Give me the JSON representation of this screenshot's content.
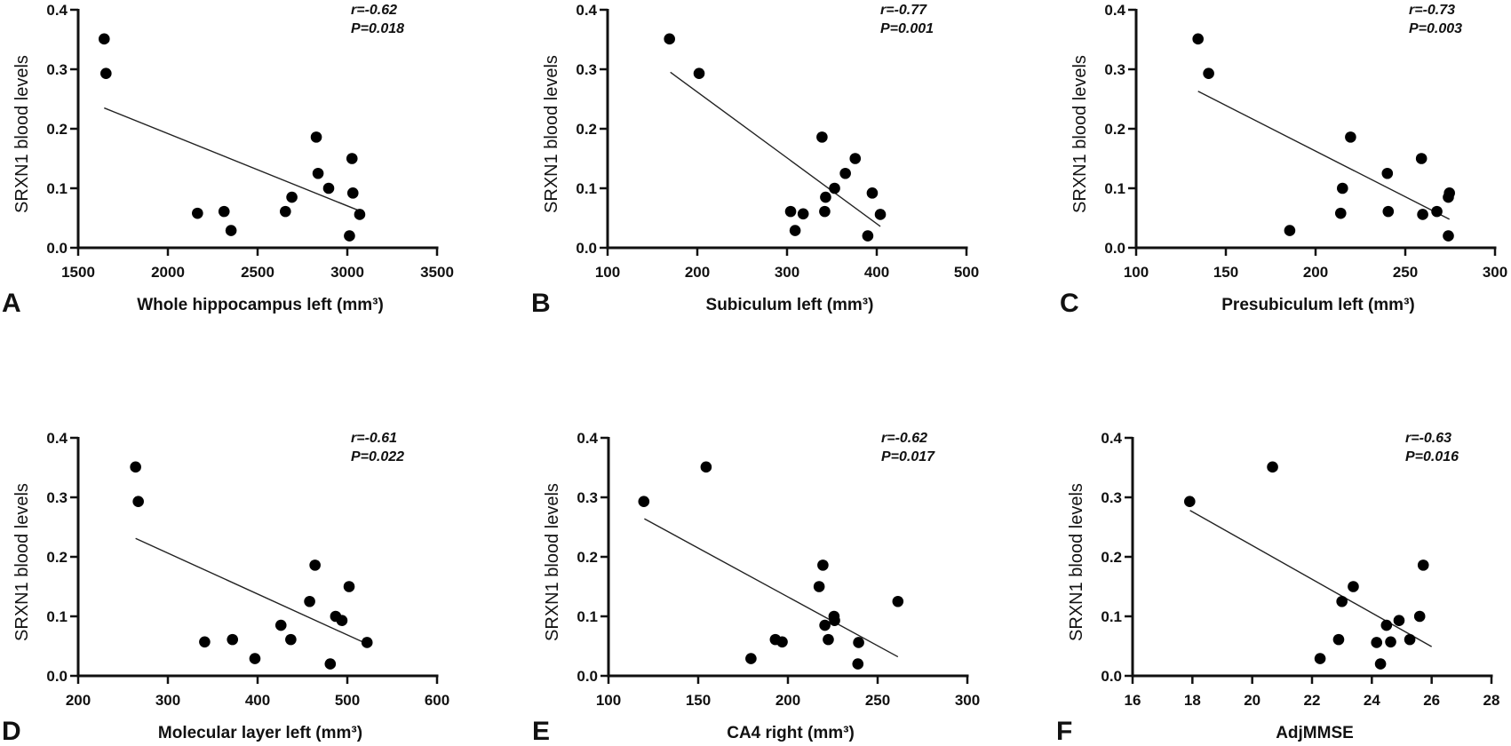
{
  "chart_data": [
    {
      "type": "scatter",
      "panel": "A",
      "xlabel": "Whole hippocampus left (mm³)",
      "ylabel": "SRXN1 blood levels",
      "xlim": [
        1500,
        3500
      ],
      "xticks": [
        1500,
        2000,
        2500,
        3000,
        3500
      ],
      "ylim": [
        0,
        0.4
      ],
      "yticks": [
        "0.0",
        "0.1",
        "0.2",
        "0.3",
        "0.4"
      ],
      "stats": {
        "r": "r=-0.62",
        "p": "P=0.018"
      },
      "points": [
        [
          1645,
          0.351
        ],
        [
          1655,
          0.293
        ],
        [
          2827,
          0.186
        ],
        [
          3026,
          0.15
        ],
        [
          2837,
          0.125
        ],
        [
          2896,
          0.1
        ],
        [
          3031,
          0.092
        ],
        [
          2691,
          0.085
        ],
        [
          2313,
          0.061
        ],
        [
          2655,
          0.061
        ],
        [
          2165,
          0.058
        ],
        [
          3069,
          0.056
        ],
        [
          2352,
          0.029
        ],
        [
          3012,
          0.02
        ]
      ],
      "fit": [
        [
          1645,
          0.235
        ],
        [
          3069,
          0.062
        ]
      ]
    },
    {
      "type": "scatter",
      "panel": "B",
      "xlabel": "Subiculum left (mm³)",
      "ylabel": "SRXN1 blood levels",
      "xlim": [
        100,
        500
      ],
      "xticks": [
        100,
        200,
        300,
        400,
        500
      ],
      "ylim": [
        0,
        0.4
      ],
      "yticks": [
        "0.0",
        "0.1",
        "0.2",
        "0.3",
        "0.4"
      ],
      "stats": {
        "r": "r=-0.77",
        "p": "P=0.001"
      },
      "points": [
        [
          169,
          0.351
        ],
        [
          202,
          0.293
        ],
        [
          339,
          0.186
        ],
        [
          376,
          0.15
        ],
        [
          365,
          0.125
        ],
        [
          353,
          0.1
        ],
        [
          395,
          0.092
        ],
        [
          343,
          0.085
        ],
        [
          304,
          0.061
        ],
        [
          342,
          0.061
        ],
        [
          318,
          0.057
        ],
        [
          404,
          0.056
        ],
        [
          309,
          0.029
        ],
        [
          390,
          0.02
        ]
      ],
      "fit": [
        [
          170,
          0.295
        ],
        [
          404,
          0.036
        ]
      ]
    },
    {
      "type": "scatter",
      "panel": "C",
      "xlabel": "Presubiculum left (mm³)",
      "ylabel": "SRXN1 blood levels",
      "xlim": [
        100,
        300
      ],
      "xticks": [
        100,
        150,
        200,
        250,
        300
      ],
      "ylim": [
        0,
        0.4
      ],
      "yticks": [
        "0.0",
        "0.1",
        "0.2",
        "0.3",
        "0.4"
      ],
      "stats": {
        "r": "r=-0.73",
        "p": "P=0.003"
      },
      "points": [
        [
          134.5,
          0.351
        ],
        [
          140.4,
          0.293
        ],
        [
          219.5,
          0.186
        ],
        [
          259,
          0.15
        ],
        [
          240,
          0.125
        ],
        [
          215,
          0.1
        ],
        [
          274.6,
          0.092
        ],
        [
          274,
          0.085
        ],
        [
          240.5,
          0.061
        ],
        [
          267.6,
          0.061
        ],
        [
          214,
          0.058
        ],
        [
          259.7,
          0.056
        ],
        [
          185.6,
          0.029
        ],
        [
          274,
          0.02
        ]
      ],
      "fit": [
        [
          134.5,
          0.263
        ],
        [
          274.6,
          0.048
        ]
      ]
    },
    {
      "type": "scatter",
      "panel": "D",
      "xlabel": "Molecular layer left (mm³)",
      "ylabel": "SRXN1 blood levels",
      "xlim": [
        200,
        600
      ],
      "xticks": [
        200,
        300,
        400,
        500,
        600
      ],
      "ylim": [
        0,
        0.4
      ],
      "yticks": [
        "0.0",
        "0.1",
        "0.2",
        "0.3",
        "0.4"
      ],
      "stats": {
        "r": "r=-0.61",
        "p": "P=0.022"
      },
      "points": [
        [
          264,
          0.351
        ],
        [
          267,
          0.293
        ],
        [
          464,
          0.186
        ],
        [
          502,
          0.15
        ],
        [
          458,
          0.125
        ],
        [
          487,
          0.1
        ],
        [
          494,
          0.093
        ],
        [
          426,
          0.085
        ],
        [
          372,
          0.061
        ],
        [
          437,
          0.061
        ],
        [
          341,
          0.057
        ],
        [
          522,
          0.056
        ],
        [
          397,
          0.029
        ],
        [
          481,
          0.02
        ]
      ],
      "fit": [
        [
          264,
          0.231
        ],
        [
          520,
          0.055
        ]
      ]
    },
    {
      "type": "scatter",
      "panel": "E",
      "xlabel": "CA4 right (mm³)",
      "ylabel": "SRXN1 blood levels",
      "xlim": [
        100,
        300
      ],
      "xticks": [
        100,
        150,
        200,
        250,
        300
      ],
      "ylim": [
        0,
        0.4
      ],
      "yticks": [
        "0.0",
        "0.1",
        "0.2",
        "0.3",
        "0.4"
      ],
      "stats": {
        "r": "r=-0.62",
        "p": "P=0.017"
      },
      "points": [
        [
          154.4,
          0.351
        ],
        [
          119.7,
          0.293
        ],
        [
          219.5,
          0.186
        ],
        [
          217.4,
          0.15
        ],
        [
          261.3,
          0.125
        ],
        [
          225.7,
          0.1
        ],
        [
          226,
          0.093
        ],
        [
          220.6,
          0.085
        ],
        [
          193,
          0.061
        ],
        [
          222.5,
          0.061
        ],
        [
          196.8,
          0.057
        ],
        [
          239.4,
          0.056
        ],
        [
          179.4,
          0.029
        ],
        [
          239,
          0.02
        ]
      ],
      "fit": [
        [
          120,
          0.264
        ],
        [
          261.3,
          0.032
        ]
      ]
    },
    {
      "type": "scatter",
      "panel": "F",
      "xlabel": "AdjMMSE",
      "ylabel": "SRXN1 blood levels",
      "xlim": [
        16,
        28
      ],
      "xticks": [
        16,
        18,
        20,
        22,
        24,
        26,
        28
      ],
      "ylim": [
        0,
        0.4
      ],
      "yticks": [
        "0.0",
        "0.1",
        "0.2",
        "0.3",
        "0.4"
      ],
      "stats": {
        "r": "r=-0.63",
        "p": "P=0.016"
      },
      "points": [
        [
          20.68,
          0.351
        ],
        [
          17.91,
          0.293
        ],
        [
          25.72,
          0.186
        ],
        [
          23.38,
          0.15
        ],
        [
          23.0,
          0.125
        ],
        [
          25.6,
          0.1
        ],
        [
          24.91,
          0.093
        ],
        [
          24.49,
          0.085
        ],
        [
          22.89,
          0.061
        ],
        [
          25.27,
          0.061
        ],
        [
          24.63,
          0.057
        ],
        [
          24.16,
          0.056
        ],
        [
          22.27,
          0.029
        ],
        [
          24.29,
          0.02
        ]
      ],
      "fit": [
        [
          17.92,
          0.278
        ],
        [
          26.0,
          0.049
        ]
      ]
    }
  ]
}
